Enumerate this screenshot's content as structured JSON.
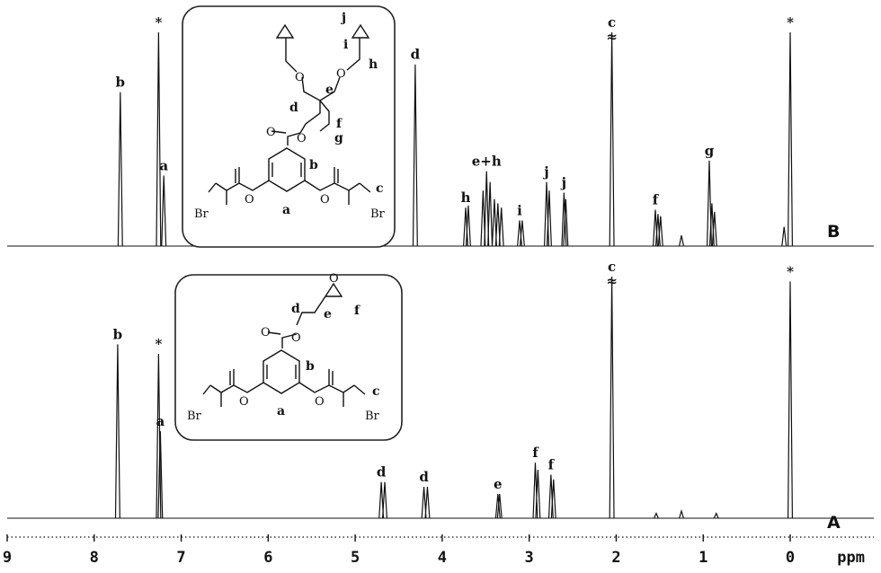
{
  "chart_data": {
    "type": "line",
    "xlabel": "ppm",
    "xlim": [
      9,
      -0.8
    ],
    "x_ticks": [
      "9",
      "8",
      "7",
      "6",
      "5",
      "4",
      "3",
      "2",
      "1",
      "0"
    ],
    "panels": [
      {
        "name": "B",
        "peaks": [
          {
            "x": 7.7,
            "h": 0.72,
            "label": "b"
          },
          {
            "x": 7.26,
            "h": 1.0,
            "label": "*"
          },
          {
            "x": 7.2,
            "h": 0.33,
            "label": "a"
          },
          {
            "x": 4.31,
            "h": 0.85,
            "label": "d"
          },
          {
            "x": 3.73,
            "h": 0.18,
            "label": "h"
          },
          {
            "x": 3.7,
            "h": 0.19
          },
          {
            "x": 3.53,
            "h": 0.26
          },
          {
            "x": 3.49,
            "h": 0.35,
            "label": "e+h"
          },
          {
            "x": 3.45,
            "h": 0.3
          },
          {
            "x": 3.4,
            "h": 0.22
          },
          {
            "x": 3.36,
            "h": 0.2
          },
          {
            "x": 3.32,
            "h": 0.18
          },
          {
            "x": 3.11,
            "h": 0.12,
            "label": "i"
          },
          {
            "x": 3.08,
            "h": 0.12
          },
          {
            "x": 2.8,
            "h": 0.3,
            "label": "j"
          },
          {
            "x": 2.77,
            "h": 0.26
          },
          {
            "x": 2.6,
            "h": 0.25,
            "label": "j"
          },
          {
            "x": 2.58,
            "h": 0.22
          },
          {
            "x": 2.05,
            "h": 1.0,
            "label": "c"
          },
          {
            "x": 1.55,
            "h": 0.17,
            "label": "f"
          },
          {
            "x": 1.52,
            "h": 0.15
          },
          {
            "x": 1.49,
            "h": 0.14
          },
          {
            "x": 1.25,
            "h": 0.05
          },
          {
            "x": 0.93,
            "h": 0.4,
            "label": "g"
          },
          {
            "x": 0.9,
            "h": 0.2
          },
          {
            "x": 0.87,
            "h": 0.16
          },
          {
            "x": 0.07,
            "h": 0.09
          },
          {
            "x": 0.0,
            "h": 1.0,
            "label": "*"
          }
        ]
      },
      {
        "name": "A",
        "peaks": [
          {
            "x": 7.73,
            "h": 0.72,
            "label": "b"
          },
          {
            "x": 7.26,
            "h": 0.68,
            "label": "*"
          },
          {
            "x": 7.24,
            "h": 0.36,
            "label": "a"
          },
          {
            "x": 4.7,
            "h": 0.15,
            "label": "d"
          },
          {
            "x": 4.66,
            "h": 0.15
          },
          {
            "x": 4.21,
            "h": 0.13,
            "label": "d"
          },
          {
            "x": 4.17,
            "h": 0.13
          },
          {
            "x": 3.36,
            "h": 0.1,
            "label": "e"
          },
          {
            "x": 3.34,
            "h": 0.1
          },
          {
            "x": 2.93,
            "h": 0.23,
            "label": "f"
          },
          {
            "x": 2.9,
            "h": 0.2
          },
          {
            "x": 2.75,
            "h": 0.18,
            "label": "f"
          },
          {
            "x": 2.72,
            "h": 0.16
          },
          {
            "x": 2.05,
            "h": 1.0,
            "label": "c"
          },
          {
            "x": 1.54,
            "h": 0.02
          },
          {
            "x": 1.25,
            "h": 0.03
          },
          {
            "x": 0.85,
            "h": 0.02
          },
          {
            "x": 0.0,
            "h": 0.98,
            "label": "*"
          }
        ]
      }
    ],
    "break_marker": "≈"
  },
  "molecules": {
    "top": {
      "atoms": {
        "br1": "Br",
        "br2": "Br"
      },
      "letters": [
        "j",
        "i",
        "h",
        "e",
        "d",
        "f",
        "g",
        "b",
        "a",
        "c"
      ]
    },
    "bottom": {
      "atoms": {
        "br1": "Br",
        "br2": "Br"
      },
      "letters": [
        "d",
        "e",
        "f",
        "b",
        "a",
        "c"
      ]
    }
  }
}
